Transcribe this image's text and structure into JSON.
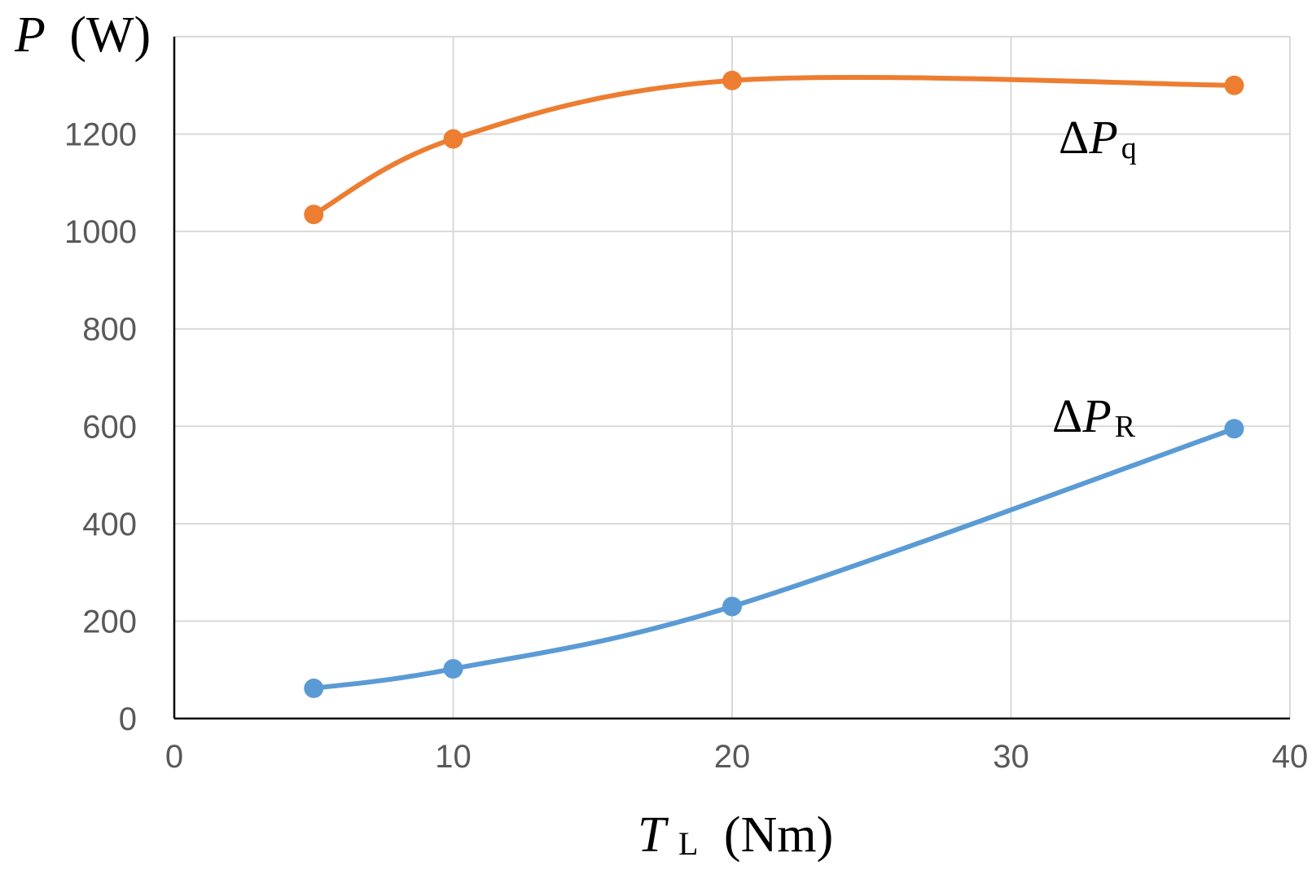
{
  "chart_data": {
    "type": "line",
    "smooth": true,
    "xlim": [
      0,
      40
    ],
    "ylim": [
      0,
      1400
    ],
    "x_ticks": [
      0,
      10,
      20,
      30,
      40
    ],
    "y_ticks": [
      0,
      200,
      400,
      600,
      800,
      1000,
      1200
    ],
    "grid": true,
    "xlabel": {
      "symbol": "T",
      "subscript": "L",
      "unit": "(Nm)"
    },
    "ylabel": {
      "symbol": "P",
      "unit": "(W)"
    },
    "series": [
      {
        "name": {
          "prefix": "Δ",
          "symbol": "P",
          "subscript": "q"
        },
        "color": "#ED7D31",
        "x": [
          5,
          10,
          20,
          38
        ],
        "y": [
          1035,
          1190,
          1310,
          1300
        ]
      },
      {
        "name": {
          "prefix": "Δ",
          "symbol": "P",
          "subscript": "R"
        },
        "color": "#5B9BD5",
        "x": [
          5,
          10,
          20,
          38
        ],
        "y": [
          62,
          102,
          230,
          595
        ]
      }
    ]
  }
}
